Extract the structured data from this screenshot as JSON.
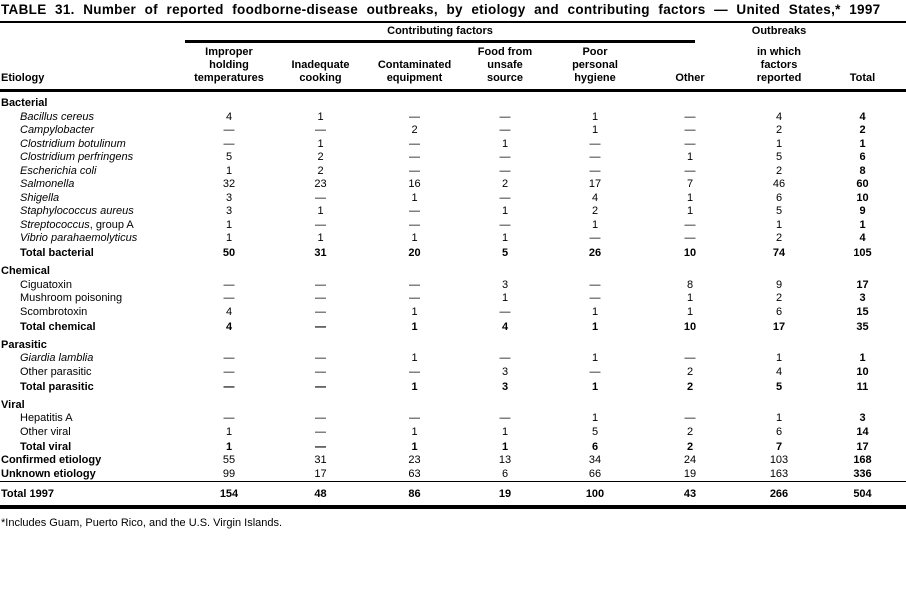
{
  "title": "TABLE 31. Number of reported foodborne-disease outbreaks, by etiology and contributing factors — United States,* 1997",
  "footnote": "*Includes Guam, Puerto Rico, and the U.S. Virgin Islands.",
  "header": {
    "etiology_label": "Etiology",
    "group_label": "Contributing factors",
    "outbreaks_top": "Outbreaks",
    "columns": [
      "Improper\nholding\ntemperatures",
      "Inadequate\ncooking",
      "Contaminated\nequipment",
      "Food from\nunsafe\nsource",
      "Poor\npersonal\nhygiene",
      "Other",
      "in which\nfactors\nreported",
      "Total"
    ]
  },
  "sections": [
    {
      "heading": "Bacterial",
      "rows": [
        {
          "label": "Bacillus cereus",
          "italic": true,
          "values": [
            "4",
            "1",
            "—",
            "—",
            "1",
            "—",
            "4",
            "4"
          ]
        },
        {
          "label": "Campylobacter",
          "italic": true,
          "values": [
            "—",
            "—",
            "2",
            "—",
            "1",
            "—",
            "2",
            "2"
          ]
        },
        {
          "label": "Clostridium botulinum",
          "italic": true,
          "values": [
            "—",
            "1",
            "—",
            "1",
            "—",
            "—",
            "1",
            "1"
          ]
        },
        {
          "label": "Clostridium perfringens",
          "italic": true,
          "values": [
            "5",
            "2",
            "—",
            "—",
            "—",
            "1",
            "5",
            "6"
          ]
        },
        {
          "label": "Escherichia coli",
          "italic": true,
          "values": [
            "1",
            "2",
            "—",
            "—",
            "—",
            "—",
            "2",
            "8"
          ]
        },
        {
          "label": "Salmonella",
          "italic": true,
          "values": [
            "32",
            "23",
            "16",
            "2",
            "17",
            "7",
            "46",
            "60"
          ]
        },
        {
          "label": "Shigella",
          "italic": true,
          "values": [
            "3",
            "—",
            "1",
            "—",
            "4",
            "1",
            "6",
            "10"
          ]
        },
        {
          "label": "Staphylococcus aureus",
          "italic": true,
          "values": [
            "3",
            "1",
            "—",
            "1",
            "2",
            "1",
            "5",
            "9"
          ]
        },
        {
          "label": "Streptococcus",
          "label_suffix": ", group A",
          "italic": true,
          "values": [
            "1",
            "—",
            "—",
            "—",
            "1",
            "—",
            "1",
            "1"
          ]
        },
        {
          "label": "Vibrio parahaemolyticus",
          "italic": true,
          "values": [
            "1",
            "1",
            "1",
            "1",
            "—",
            "—",
            "2",
            "4"
          ]
        },
        {
          "label": "Total bacterial",
          "total": true,
          "values": [
            "50",
            "31",
            "20",
            "5",
            "26",
            "10",
            "74",
            "105"
          ]
        }
      ]
    },
    {
      "heading": "Chemical",
      "rows": [
        {
          "label": "Ciguatoxin",
          "values": [
            "—",
            "—",
            "—",
            "3",
            "—",
            "8",
            "9",
            "17"
          ]
        },
        {
          "label": "Mushroom poisoning",
          "values": [
            "—",
            "—",
            "—",
            "1",
            "—",
            "1",
            "2",
            "3"
          ]
        },
        {
          "label": "Scombrotoxin",
          "values": [
            "4",
            "—",
            "1",
            "—",
            "1",
            "1",
            "6",
            "15"
          ]
        },
        {
          "label": "Total chemical",
          "total": true,
          "values": [
            "4",
            "—",
            "1",
            "4",
            "1",
            "10",
            "17",
            "35"
          ]
        }
      ]
    },
    {
      "heading": "Parasitic",
      "rows": [
        {
          "label": "Giardia lamblia",
          "italic": true,
          "values": [
            "—",
            "—",
            "1",
            "—",
            "1",
            "—",
            "1",
            "1"
          ]
        },
        {
          "label": "Other parasitic",
          "values": [
            "—",
            "—",
            "—",
            "3",
            "—",
            "2",
            "4",
            "10"
          ]
        },
        {
          "label": "Total parasitic",
          "total": true,
          "values": [
            "—",
            "—",
            "1",
            "3",
            "1",
            "2",
            "5",
            "11"
          ]
        }
      ]
    },
    {
      "heading": "Viral",
      "rows": [
        {
          "label": "Hepatitis A",
          "values": [
            "—",
            "—",
            "—",
            "—",
            "1",
            "—",
            "1",
            "3"
          ]
        },
        {
          "label": "Other viral",
          "values": [
            "1",
            "—",
            "1",
            "1",
            "5",
            "2",
            "6",
            "14"
          ]
        },
        {
          "label": "Total viral",
          "total": true,
          "values": [
            "1",
            "—",
            "1",
            "1",
            "6",
            "2",
            "7",
            "17"
          ]
        }
      ]
    }
  ],
  "summary_rows": [
    {
      "label": "Confirmed etiology",
      "values": [
        "55",
        "31",
        "23",
        "13",
        "34",
        "24",
        "103",
        "168"
      ]
    },
    {
      "label": "Unknown etiology",
      "values": [
        "99",
        "17",
        "63",
        "6",
        "66",
        "19",
        "163",
        "336"
      ]
    }
  ],
  "grand_total_row": {
    "label": "Total 1997",
    "values": [
      "154",
      "48",
      "86",
      "19",
      "100",
      "43",
      "266",
      "504"
    ]
  }
}
